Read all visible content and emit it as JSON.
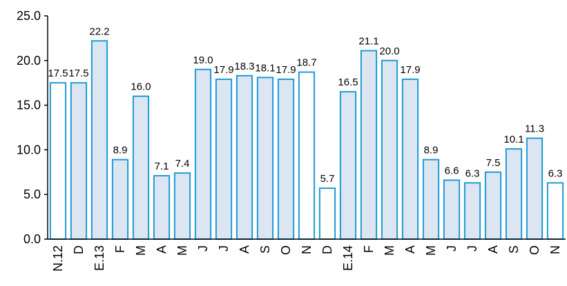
{
  "chart_data": {
    "type": "bar",
    "title": "",
    "xlabel": "",
    "ylabel": "",
    "ylim": [
      0,
      25
    ],
    "yticks": [
      "0.0",
      "5.0",
      "10.0",
      "15.0",
      "20.0",
      "25.0"
    ],
    "grid": false,
    "legend": "none",
    "categories": [
      "N.12",
      "D",
      "E.13",
      "F",
      "M",
      "A",
      "M",
      "J",
      "J",
      "A",
      "S",
      "O",
      "N",
      "D",
      "E.14",
      "F",
      "M",
      "A",
      "M",
      "J",
      "J",
      "A",
      "S",
      "O",
      "N"
    ],
    "values": [
      17.5,
      17.5,
      22.2,
      8.9,
      16.0,
      7.1,
      7.4,
      19.0,
      17.9,
      18.3,
      18.1,
      17.9,
      18.7,
      5.7,
      16.5,
      21.1,
      20.0,
      17.9,
      8.9,
      6.6,
      6.3,
      7.5,
      10.1,
      11.3,
      6.3
    ],
    "value_labels": [
      "17.5",
      "17.5",
      "22.2",
      "8.9",
      "16.0",
      "7.1",
      "7.4",
      "19.0",
      "17.9",
      "18.3",
      "18.1",
      "17.9",
      "18.7",
      "5.7",
      "16.5",
      "21.1",
      "20.0",
      "17.9",
      "8.9",
      "6.6",
      "6.3",
      "7.5",
      "10.1",
      "11.3",
      "6.3"
    ],
    "bar_fill": [
      "#ffffff",
      "#dce6f2",
      "#dce6f2",
      "#dce6f2",
      "#dce6f2",
      "#dce6f2",
      "#dce6f2",
      "#dce6f2",
      "#dce6f2",
      "#dce6f2",
      "#dce6f2",
      "#dce6f2",
      "#ffffff",
      "#ffffff",
      "#dce6f2",
      "#dce6f2",
      "#dce6f2",
      "#dce6f2",
      "#dce6f2",
      "#dce6f2",
      "#dce6f2",
      "#dce6f2",
      "#dce6f2",
      "#dce6f2",
      "#ffffff"
    ],
    "bar_stroke": "#1f9ad6",
    "axis_color": "#000000"
  }
}
